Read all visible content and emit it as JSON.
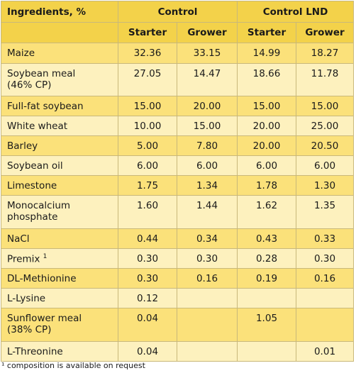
{
  "table": {
    "header": {
      "ingredients": "Ingredients, %",
      "control": "Control",
      "control_lnd": "Control LND",
      "sub": [
        "Starter",
        "Grower",
        "Starter",
        "Grower"
      ]
    },
    "rows": [
      {
        "name": "Maize",
        "v": [
          "32.36",
          "33.15",
          "14.99",
          "18.27"
        ],
        "h": 29
      },
      {
        "name": "Soybean meal\n(46% CP)",
        "v": [
          "27.05",
          "14.47",
          "18.66",
          "11.78"
        ],
        "h": 46
      },
      {
        "name": "Full-fat soybean",
        "v": [
          "15.00",
          "20.00",
          "15.00",
          "15.00"
        ],
        "h": 28
      },
      {
        "name": "White wheat",
        "v": [
          "10.00",
          "15.00",
          "20.00",
          "25.00"
        ],
        "h": 28
      },
      {
        "name": "Barley",
        "v": [
          "5.00",
          "7.80",
          "20.00",
          "20.50"
        ],
        "h": 28
      },
      {
        "name": "Soybean oil",
        "v": [
          "6.00",
          "6.00",
          "6.00",
          "6.00"
        ],
        "h": 28
      },
      {
        "name": "Limestone",
        "v": [
          "1.75",
          "1.34",
          "1.78",
          "1.30"
        ],
        "h": 28
      },
      {
        "name": "Monocalcium\nphosphate",
        "v": [
          "1.60",
          "1.44",
          "1.62",
          "1.35"
        ],
        "h": 47
      },
      {
        "name": "NaCl",
        "v": [
          "0.44",
          "0.34",
          "0.43",
          "0.33"
        ],
        "h": 28
      },
      {
        "name": "Premix",
        "sup": "1",
        "v": [
          "0.30",
          "0.30",
          "0.28",
          "0.30"
        ],
        "h": 28
      },
      {
        "name": "DL-Methionine",
        "v": [
          "0.30",
          "0.16",
          "0.19",
          "0.16"
        ],
        "h": 28
      },
      {
        "name": "L-Lysine",
        "v": [
          "0.12",
          "",
          "",
          ""
        ],
        "h": 28
      },
      {
        "name": "Sunflower meal\n(38% CP)",
        "v": [
          "0.04",
          "",
          "1.05",
          ""
        ],
        "h": 47
      },
      {
        "name": "L-Threonine",
        "v": [
          "0.04",
          "",
          "",
          "0.01"
        ],
        "h": 28
      }
    ]
  },
  "footnote": "¹ composition is available on request"
}
